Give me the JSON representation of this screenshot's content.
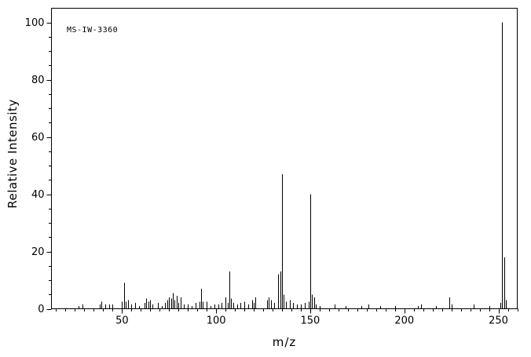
{
  "figure": {
    "id_label": "MS-IW-3360"
  },
  "chart_data": {
    "type": "bar",
    "chart_kind": "mass-spectrum",
    "title": "MS-IW-3360",
    "xlabel": "m/z",
    "ylabel": "Relative Intensity",
    "xlim": [
      12.5,
      260
    ],
    "ylim": [
      0,
      105
    ],
    "x_major_ticks": [
      50,
      100,
      150,
      200,
      250
    ],
    "x_minor_tick_step": 5,
    "y_major_ticks": [
      0,
      20,
      40,
      60,
      80,
      100
    ],
    "y_minor_tick_step": 5,
    "grid": false,
    "axis_color": "#000000",
    "peak_color": "#000000",
    "background_color": "#ffffff",
    "peaks": [
      [
        27,
        1
      ],
      [
        29,
        1.5
      ],
      [
        38,
        1.5
      ],
      [
        39,
        2.5
      ],
      [
        41,
        1.5
      ],
      [
        43,
        1.5
      ],
      [
        45,
        1.5
      ],
      [
        50,
        2.5
      ],
      [
        51,
        9
      ],
      [
        52,
        2.5
      ],
      [
        53,
        3
      ],
      [
        55,
        1.5
      ],
      [
        57,
        2
      ],
      [
        59,
        1
      ],
      [
        62,
        2
      ],
      [
        63,
        3.5
      ],
      [
        64,
        2.5
      ],
      [
        65,
        3
      ],
      [
        66,
        1.5
      ],
      [
        69,
        2
      ],
      [
        71,
        1
      ],
      [
        73,
        2
      ],
      [
        74,
        3
      ],
      [
        75,
        4
      ],
      [
        76,
        3.5
      ],
      [
        77,
        5.5
      ],
      [
        78,
        3
      ],
      [
        79,
        4.5
      ],
      [
        80,
        2
      ],
      [
        81,
        4
      ],
      [
        83,
        1.5
      ],
      [
        85,
        1.5
      ],
      [
        87,
        1
      ],
      [
        89,
        2
      ],
      [
        91,
        2.5
      ],
      [
        92,
        7
      ],
      [
        93,
        2.5
      ],
      [
        95,
        2.5
      ],
      [
        97,
        1
      ],
      [
        99,
        1.5
      ],
      [
        101,
        1.5
      ],
      [
        103,
        2
      ],
      [
        105,
        4
      ],
      [
        106,
        2
      ],
      [
        107,
        13
      ],
      [
        108,
        3.5
      ],
      [
        109,
        2
      ],
      [
        111,
        1.5
      ],
      [
        113,
        2
      ],
      [
        115,
        2.5
      ],
      [
        117,
        1.5
      ],
      [
        119,
        3
      ],
      [
        120,
        2
      ],
      [
        121,
        4
      ],
      [
        127,
        3
      ],
      [
        128,
        4
      ],
      [
        129,
        3
      ],
      [
        131,
        2
      ],
      [
        133,
        12
      ],
      [
        134,
        13
      ],
      [
        135,
        47
      ],
      [
        136,
        5
      ],
      [
        137,
        2.5
      ],
      [
        139,
        3
      ],
      [
        141,
        2
      ],
      [
        143,
        1.5
      ],
      [
        145,
        1.5
      ],
      [
        147,
        2
      ],
      [
        149,
        2.5
      ],
      [
        150,
        40
      ],
      [
        151,
        5
      ],
      [
        152,
        4
      ],
      [
        153,
        1.5
      ],
      [
        155,
        1
      ],
      [
        163,
        1.5
      ],
      [
        169,
        1
      ],
      [
        177,
        1
      ],
      [
        181,
        1.5
      ],
      [
        187,
        1
      ],
      [
        195,
        1
      ],
      [
        207,
        1
      ],
      [
        209,
        1.5
      ],
      [
        217,
        1
      ],
      [
        224,
        4
      ],
      [
        225,
        1.5
      ],
      [
        237,
        1.5
      ],
      [
        245,
        1
      ],
      [
        251,
        2
      ],
      [
        252,
        100
      ],
      [
        253,
        18
      ],
      [
        254,
        3
      ]
    ]
  }
}
